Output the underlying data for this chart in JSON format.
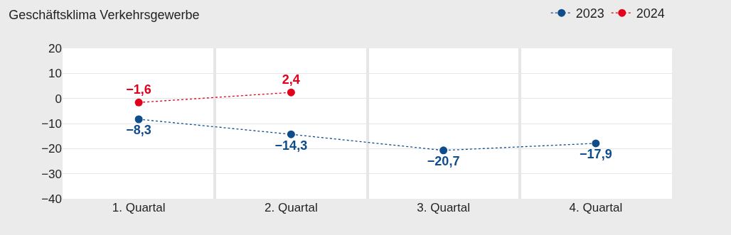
{
  "chart_data": {
    "type": "line",
    "title": "Geschäftsklima Verkehrsgewerbe",
    "categories": [
      "1. Quartal",
      "2. Quartal",
      "3. Quartal",
      "4. Quartal"
    ],
    "series": [
      {
        "name": "2023",
        "color": "#0f4c8c",
        "values": [
          -8.3,
          -14.3,
          -20.7,
          -17.9
        ],
        "value_labels": [
          "−8,3",
          "−14,3",
          "−20,7",
          "−17,9"
        ]
      },
      {
        "name": "2024",
        "color": "#e2001a",
        "values": [
          -1.6,
          2.4,
          null,
          null
        ],
        "value_labels": [
          "−1,6",
          "2,4",
          null,
          null
        ]
      }
    ],
    "ylim": [
      -40,
      20
    ],
    "yticks": [
      {
        "value": -40,
        "label": "−40"
      },
      {
        "value": -30,
        "label": "−30"
      },
      {
        "value": -20,
        "label": "−20"
      },
      {
        "value": -10,
        "label": "−10"
      },
      0,
      10,
      20
    ],
    "grid": true,
    "legend": "top right",
    "marker": "circle",
    "line_style": "dotted"
  }
}
